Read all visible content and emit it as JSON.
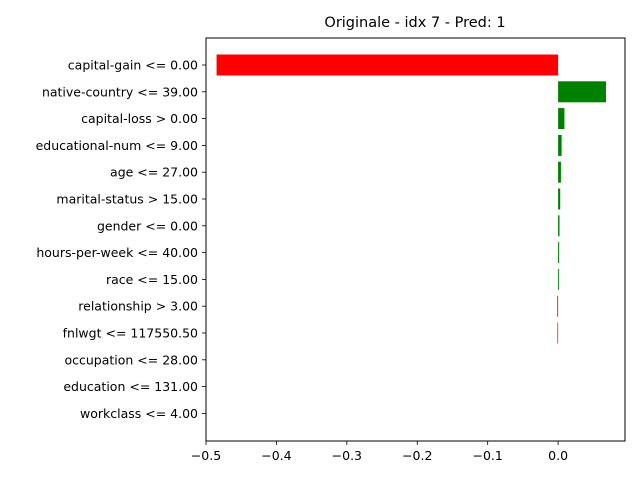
{
  "chart_data": {
    "type": "bar",
    "orientation": "horizontal",
    "title": "Originale - idx 7 - Pred: 1",
    "xlabel": "",
    "ylabel": "",
    "xlim": [
      -0.5,
      0.095
    ],
    "xticks": [
      -0.5,
      -0.4,
      -0.3,
      -0.2,
      -0.1,
      0.0
    ],
    "xtick_labels": [
      "−0.5",
      "−0.4",
      "−0.3",
      "−0.2",
      "−0.1",
      "0.0"
    ],
    "grid": false,
    "positive_color": "#008000",
    "negative_color": "#ff0000",
    "categories": [
      "capital-gain <= 0.00",
      "native-country <= 39.00",
      "capital-loss > 0.00",
      "educational-num <= 9.00",
      "age <= 27.00",
      "marital-status > 15.00",
      "gender <= 0.00",
      "hours-per-week <= 40.00",
      "race <= 15.00",
      "relationship > 3.00",
      "fnlwgt <= 117550.50",
      "occupation <= 28.00",
      "education <= 131.00",
      "workclass <= 4.00"
    ],
    "values": [
      -0.485,
      0.068,
      0.009,
      0.005,
      0.004,
      0.003,
      0.002,
      0.0015,
      0.0012,
      -0.0012,
      -0.001,
      0.0,
      0.0,
      0.0
    ]
  }
}
